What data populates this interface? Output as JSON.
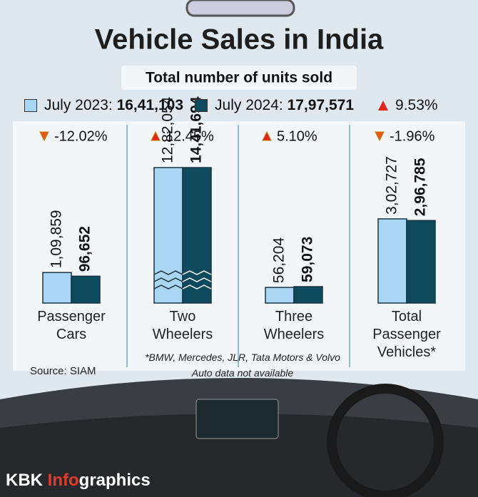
{
  "chart_data": {
    "type": "bar",
    "title": "Vehicle Sales in India",
    "subtitle": "Total number of units sold",
    "categories": [
      "Passenger Cars",
      "Two Wheelers",
      "Three Wheelers",
      "Total Passenger Vehicles*"
    ],
    "series": [
      {
        "name": "July 2023:",
        "color": "#a9d6f2",
        "total": 1641103,
        "total_label": "16,41,103",
        "values": [
          109859,
          1282054,
          56204,
          302727
        ],
        "value_labels": [
          "1,09,859",
          "12,82,054",
          "56,204",
          "3,02,727"
        ]
      },
      {
        "name": "July 2024:",
        "color": "#0d4a5e",
        "total": 1797571,
        "total_label": "17,97,571",
        "values": [
          96652,
          1441694,
          59073,
          296785
        ],
        "value_labels": [
          "96,652",
          "14,41,694",
          "59,073",
          "2,96,785"
        ]
      }
    ],
    "changes": [
      -12.02,
      12.45,
      5.1,
      -1.96
    ],
    "change_labels": [
      "-12.02%",
      "12.45%",
      "5.10%",
      "-1.96%"
    ],
    "overall_change": 9.53,
    "overall_change_label": "9.53%",
    "note": "*BMW, Mercedes, JLR, Tata Motors & Volvo Auto data not available",
    "source": "Source: SIAM",
    "credit": [
      "KBK ",
      "Info",
      "graphics"
    ]
  }
}
